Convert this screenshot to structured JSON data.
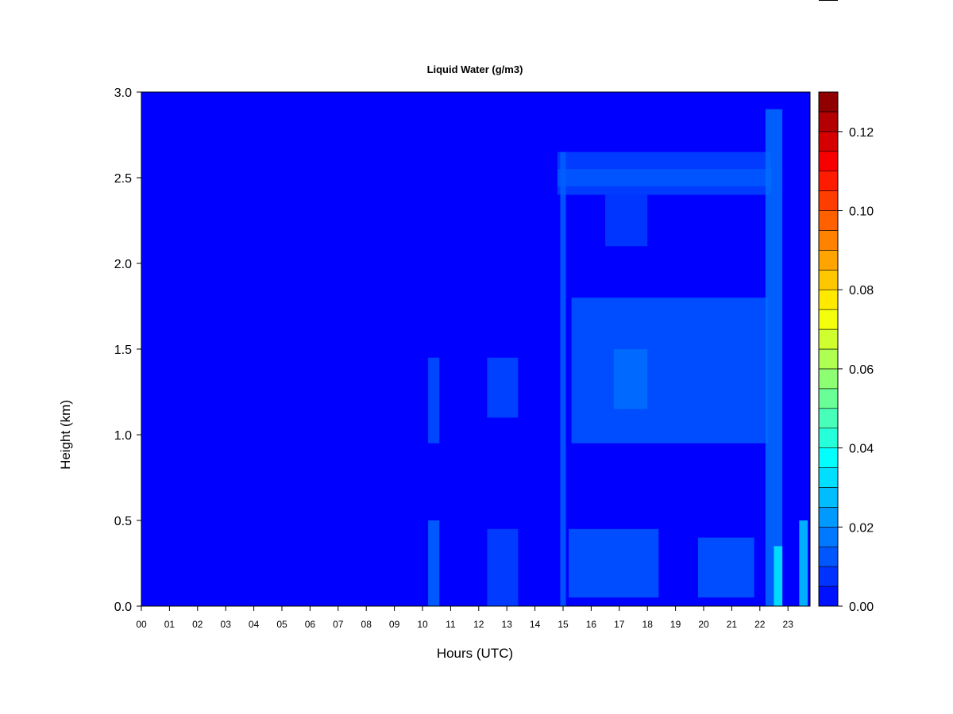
{
  "chart_data": {
    "type": "heatmap",
    "title": "Liquid Water (g/m3)",
    "xlabel": "Hours (UTC)",
    "ylabel": "Height (km)",
    "x_tick_labels": [
      "00",
      "01",
      "02",
      "03",
      "04",
      "05",
      "06",
      "07",
      "08",
      "09",
      "10",
      "11",
      "12",
      "13",
      "14",
      "15",
      "16",
      "17",
      "18",
      "19",
      "20",
      "21",
      "22",
      "23"
    ],
    "xlim": [
      0,
      23.8
    ],
    "ylim": [
      0,
      3.0
    ],
    "y_ticks": [
      0.0,
      0.5,
      1.0,
      1.5,
      2.0,
      2.5,
      3.0
    ],
    "y_tick_labels": [
      "0.0",
      "0.5",
      "1.0",
      "1.5",
      "2.0",
      "2.5",
      "3.0"
    ],
    "colorbar": {
      "range": [
        0,
        0.13
      ],
      "step": 0.005,
      "ticks": [
        0.0,
        0.02,
        0.04,
        0.06,
        0.08,
        0.1,
        0.12
      ],
      "tick_labels": [
        "0.00",
        "0.02",
        "0.04",
        "0.06",
        "0.08",
        "0.10",
        "0.12"
      ]
    },
    "cloud_features": [
      {
        "x": [
          10.2,
          10.6
        ],
        "y": [
          0.0,
          0.5
        ],
        "value": 0.015
      },
      {
        "x": [
          10.2,
          10.6
        ],
        "y": [
          0.95,
          1.45
        ],
        "value": 0.012
      },
      {
        "x": [
          12.3,
          13.4
        ],
        "y": [
          0.0,
          0.45
        ],
        "value": 0.01
      },
      {
        "x": [
          12.3,
          13.4
        ],
        "y": [
          1.1,
          1.45
        ],
        "value": 0.011
      },
      {
        "x": [
          14.8,
          22.4
        ],
        "y": [
          2.4,
          2.65
        ],
        "value": 0.01
      },
      {
        "x": [
          14.8,
          22.4
        ],
        "y": [
          2.45,
          2.55
        ],
        "value": 0.013
      },
      {
        "x": [
          16.5,
          18.0
        ],
        "y": [
          2.1,
          2.4
        ],
        "value": 0.009
      },
      {
        "x": [
          15.3,
          22.3
        ],
        "y": [
          0.95,
          1.8
        ],
        "value": 0.013
      },
      {
        "x": [
          16.8,
          18.0
        ],
        "y": [
          1.15,
          1.5
        ],
        "value": 0.016
      },
      {
        "x": [
          14.9,
          15.1
        ],
        "y": [
          0.0,
          2.65
        ],
        "value": 0.014
      },
      {
        "x": [
          15.2,
          18.4
        ],
        "y": [
          0.05,
          0.45
        ],
        "value": 0.013
      },
      {
        "x": [
          19.8,
          21.8
        ],
        "y": [
          0.05,
          0.4
        ],
        "value": 0.013
      },
      {
        "x": [
          22.2,
          22.8
        ],
        "y": [
          0.0,
          2.9
        ],
        "value": 0.016
      },
      {
        "x": [
          22.5,
          22.8
        ],
        "y": [
          0.0,
          0.35
        ],
        "value": 0.035
      },
      {
        "x": [
          23.4,
          23.7
        ],
        "y": [
          0.0,
          0.5
        ],
        "value": 0.03
      }
    ]
  }
}
